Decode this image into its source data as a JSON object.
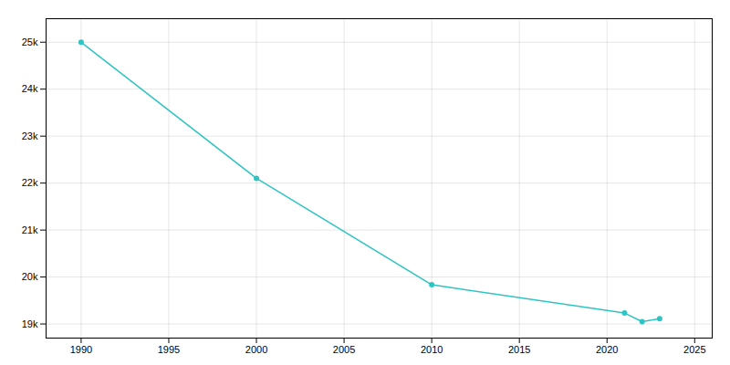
{
  "chart_data": {
    "type": "line",
    "x": [
      1990,
      2000,
      2010,
      2021,
      2022,
      2023
    ],
    "values": [
      24998,
      22102,
      19836,
      19233,
      19050,
      19113
    ],
    "color": "#2EC4C4",
    "marker": "circle",
    "xlim": [
      1988,
      2026
    ],
    "xticks": [
      1990,
      1995,
      2000,
      2005,
      2010,
      2015,
      2020,
      2025
    ],
    "ylim": [
      18700,
      25500
    ],
    "yticks": [
      {
        "value": 19000,
        "label": "19k"
      },
      {
        "value": 20000,
        "label": "20k"
      },
      {
        "value": 21000,
        "label": "21k"
      },
      {
        "value": 22000,
        "label": "22k"
      },
      {
        "value": 23000,
        "label": "23k"
      },
      {
        "value": 24000,
        "label": "24k"
      },
      {
        "value": 25000,
        "label": "25k"
      }
    ],
    "grid": true
  }
}
